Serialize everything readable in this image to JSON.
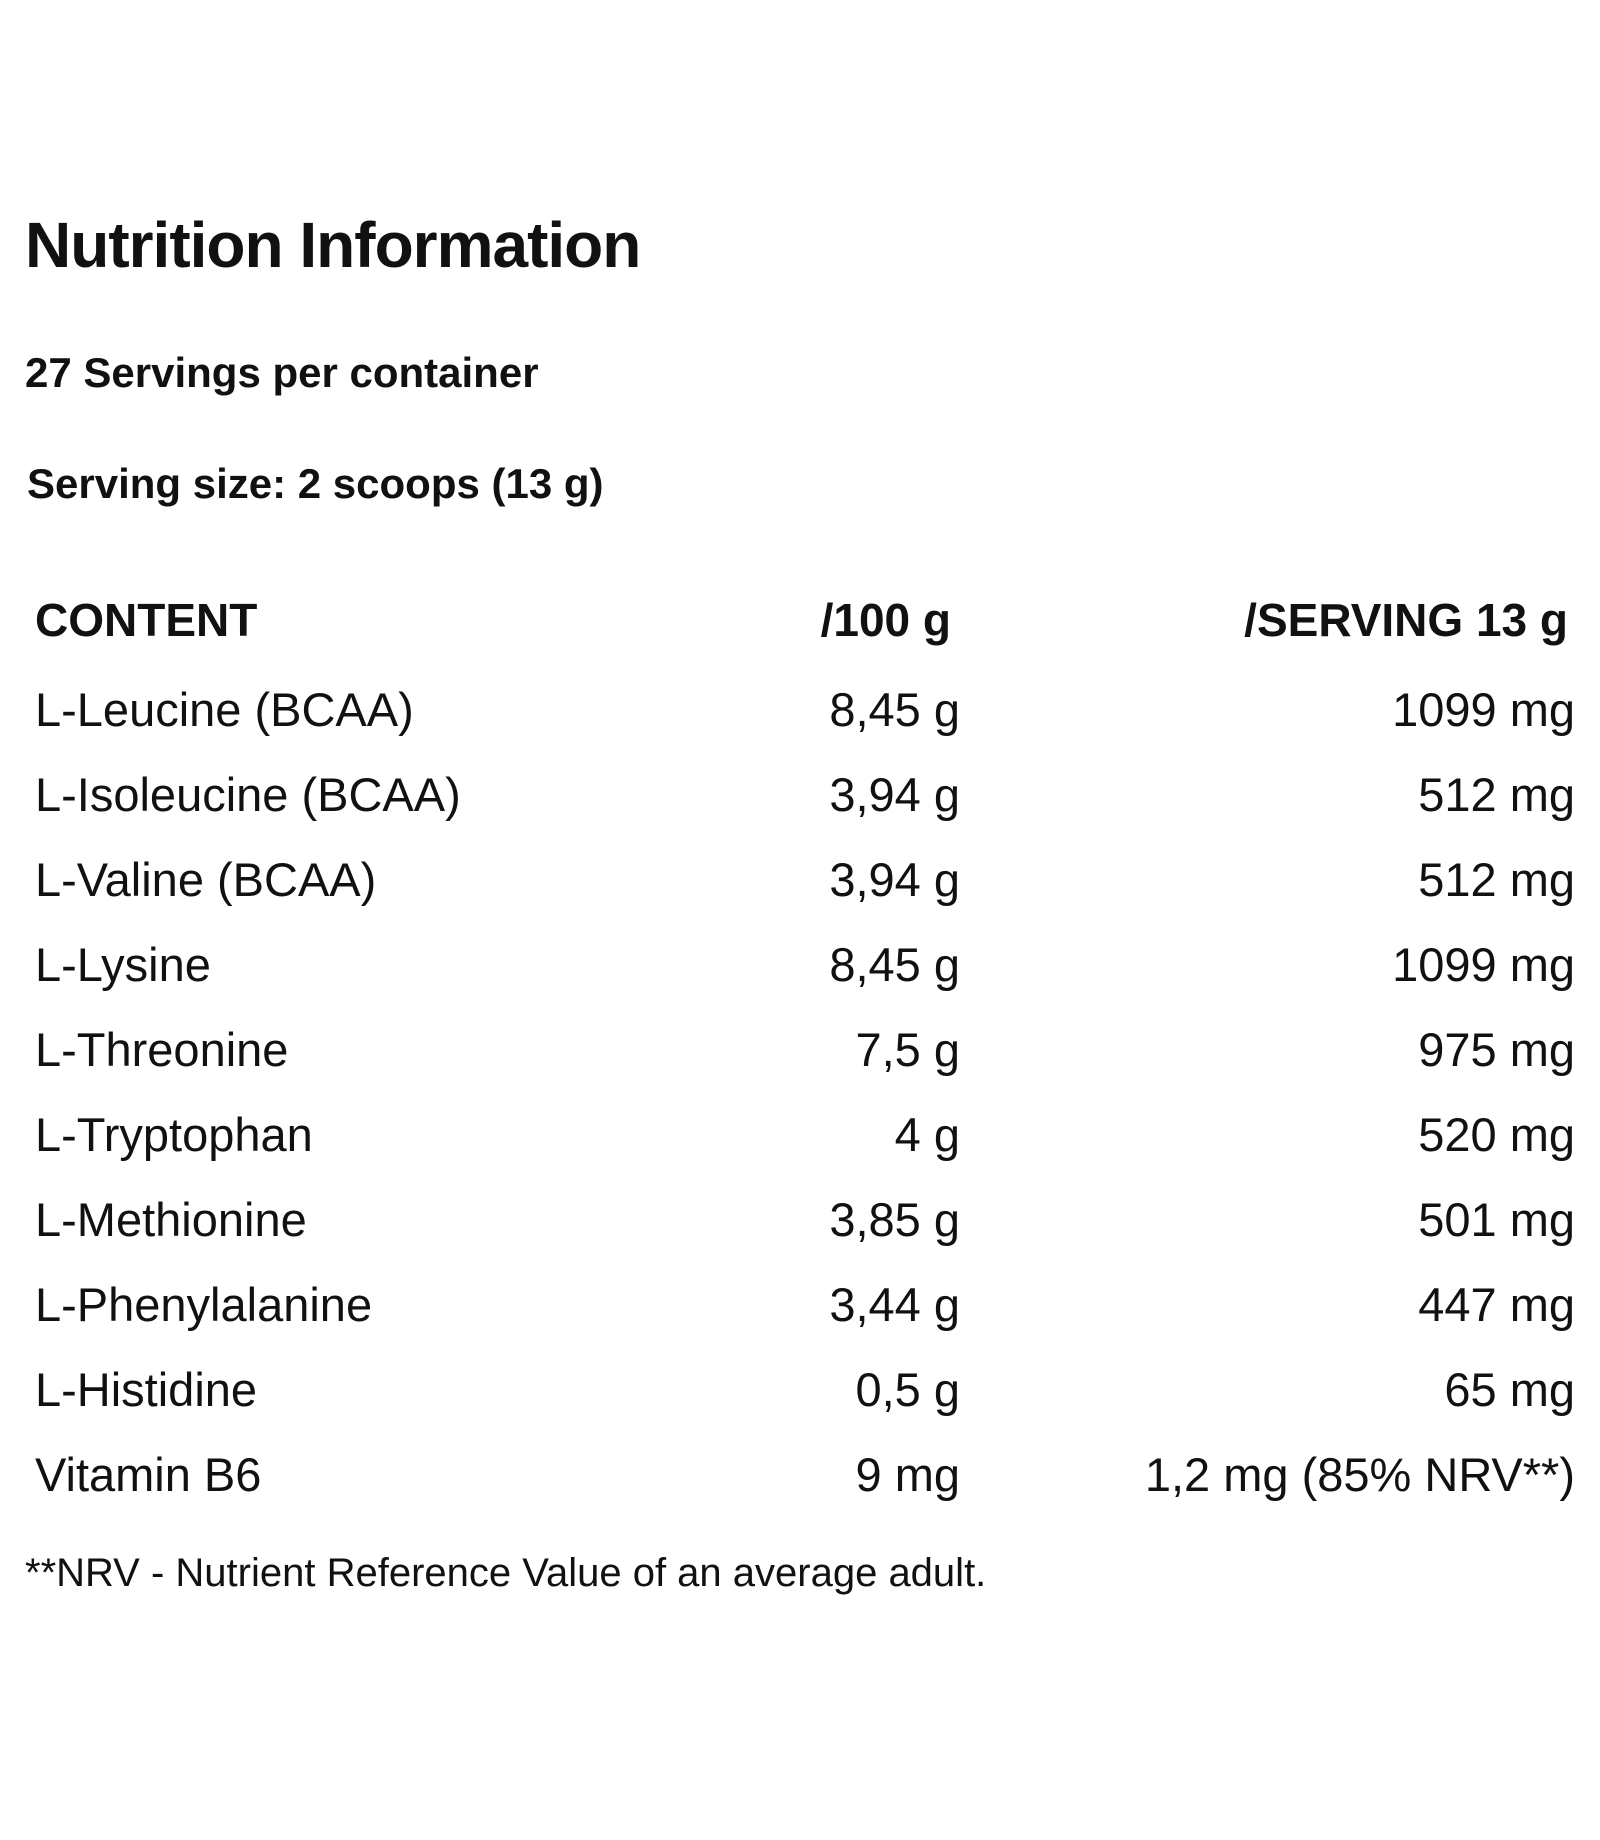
{
  "title": "Nutrition Information",
  "servings_per_container": "27 Servings per container",
  "serving_size": "Serving size: 2 scoops (13 g)",
  "table": {
    "headers": {
      "content": "CONTENT",
      "per_100g": "/100 g",
      "per_serving": "/SERVING 13 g"
    },
    "rows": [
      {
        "name": "L-Leucine (BCAA)",
        "per_100g": "8,45 g",
        "per_serving": "1099 mg"
      },
      {
        "name": "L-Isoleucine (BCAA)",
        "per_100g": "3,94 g",
        "per_serving": "512 mg"
      },
      {
        "name": "L-Valine (BCAA)",
        "per_100g": "3,94 g",
        "per_serving": "512 mg"
      },
      {
        "name": "L-Lysine",
        "per_100g": "8,45 g",
        "per_serving": "1099 mg"
      },
      {
        "name": "L-Threonine",
        "per_100g": "7,5 g",
        "per_serving": "975 mg"
      },
      {
        "name": "L-Tryptophan",
        "per_100g": "4 g",
        "per_serving": "520 mg"
      },
      {
        "name": "L-Methionine",
        "per_100g": "3,85 g",
        "per_serving": "501 mg"
      },
      {
        "name": "L-Phenylalanine",
        "per_100g": "3,44 g",
        "per_serving": "447 mg"
      },
      {
        "name": "L-Histidine",
        "per_100g": "0,5 g",
        "per_serving": "65 mg"
      },
      {
        "name": "Vitamin B6",
        "per_100g": "9 mg",
        "per_serving": "1,2 mg (85% NRV**)"
      }
    ]
  },
  "footnote": "**NRV - Nutrient Reference Value of an average adult."
}
